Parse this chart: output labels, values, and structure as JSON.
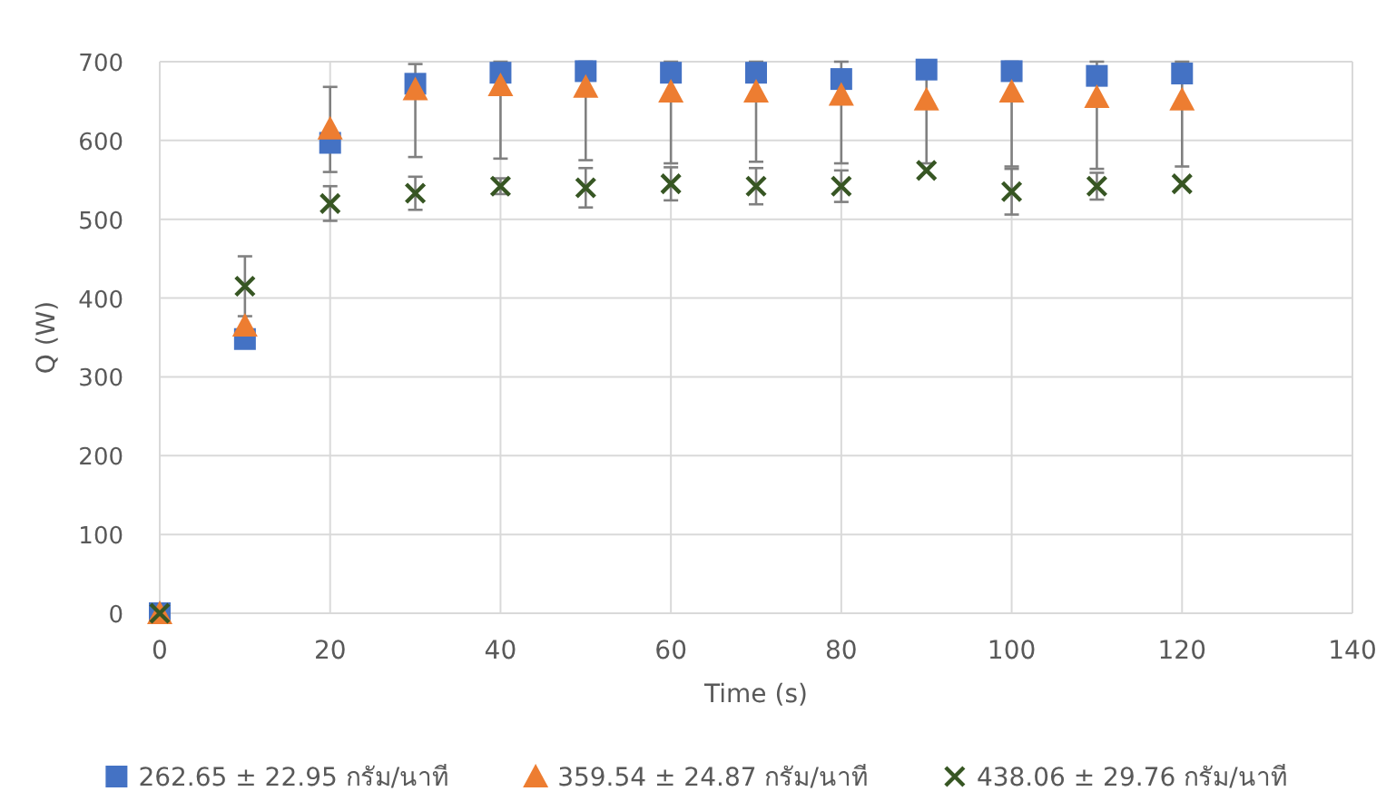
{
  "chart_data": {
    "type": "scatter",
    "xlabel": "Time (s)",
    "ylabel": "Q (W)",
    "x": [
      0,
      10,
      20,
      30,
      40,
      50,
      60,
      70,
      80,
      90,
      100,
      110,
      120
    ],
    "xlim": [
      0,
      140
    ],
    "xticks": [
      0,
      20,
      40,
      60,
      80,
      100,
      120,
      140
    ],
    "ylim": [
      0,
      700
    ],
    "yticks": [
      0,
      100,
      200,
      300,
      400,
      500,
      600,
      700
    ],
    "grid": true,
    "legend": "bottom",
    "series": [
      {
        "name": "262.65 ± 22.95 กรัม/นาที",
        "color": "#4472c4",
        "marker": "square",
        "values": [
          0,
          348,
          597,
          672,
          686,
          688,
          686,
          686,
          678,
          690,
          688,
          682,
          685
        ]
      },
      {
        "name": "359.54 ± 24.87 กรัม/นาที",
        "color": "#ed7d31",
        "marker": "triangle",
        "values": [
          0,
          365,
          615,
          665,
          670,
          668,
          662,
          662,
          658,
          652,
          662,
          655,
          652
        ],
        "errors": [
          null,
          null,
          [
            560,
            668
          ],
          [
            579,
            697
          ],
          [
            577,
            700
          ],
          [
            575,
            700
          ],
          [
            571,
            700
          ],
          [
            573,
            700
          ],
          [
            571,
            700
          ],
          [
            571,
            700
          ],
          [
            567,
            700
          ],
          [
            564,
            700
          ],
          [
            567,
            700
          ]
        ]
      },
      {
        "name": "438.06 ± 29.76 กรัม/นาที",
        "color": "#375623",
        "marker": "cross",
        "values": [
          0,
          415,
          520,
          533,
          542,
          540,
          545,
          542,
          542,
          562,
          535,
          542,
          545
        ],
        "errors": [
          null,
          38,
          22,
          21,
          10,
          25,
          21,
          23,
          20,
          null,
          29,
          17,
          null
        ]
      }
    ]
  }
}
